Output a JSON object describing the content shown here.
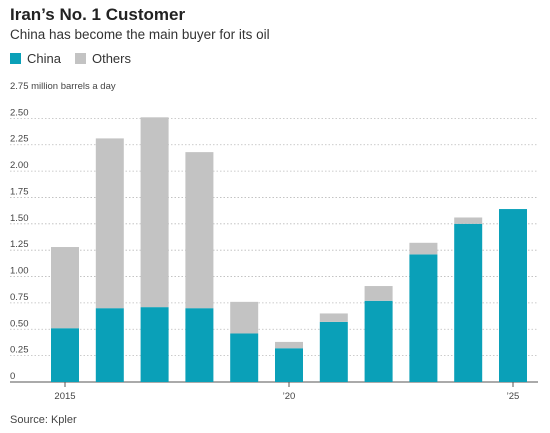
{
  "header": {
    "title": "Iran’s No. 1 Customer",
    "subtitle": "China has become the main buyer for its oil"
  },
  "legend": {
    "items": [
      {
        "label": "China",
        "color": "#0aa0b8"
      },
      {
        "label": "Others",
        "color": "#c3c3c3"
      }
    ]
  },
  "source": "Source: Kpler",
  "chart_data": {
    "type": "bar",
    "stacked": true,
    "ylabel": "",
    "unit_label": "2.75 million barrels a day",
    "ylim": [
      0,
      2.75
    ],
    "yticks": [
      "0",
      "0.25",
      "0.50",
      "0.75",
      "1.00",
      "1.25",
      "1.50",
      "1.75",
      "2.00",
      "2.25",
      "2.50"
    ],
    "x": [
      2015,
      2016,
      2017,
      2018,
      2019,
      2020,
      2021,
      2022,
      2023,
      2024,
      2025
    ],
    "xtick_labels": [
      {
        "x": 2015,
        "label": "2015"
      },
      {
        "x": 2020,
        "label": "’20"
      },
      {
        "x": 2025,
        "label": "’25"
      }
    ],
    "series": [
      {
        "name": "China",
        "color": "#0aa0b8",
        "values": [
          0.51,
          0.7,
          0.71,
          0.7,
          0.46,
          0.32,
          0.57,
          0.77,
          1.21,
          1.5,
          1.64
        ]
      },
      {
        "name": "Others",
        "color": "#c3c3c3",
        "values": [
          0.77,
          1.61,
          1.8,
          1.48,
          0.3,
          0.06,
          0.08,
          0.14,
          0.11,
          0.06,
          0.0
        ]
      }
    ],
    "grid": true,
    "legend_position": "top-left"
  }
}
